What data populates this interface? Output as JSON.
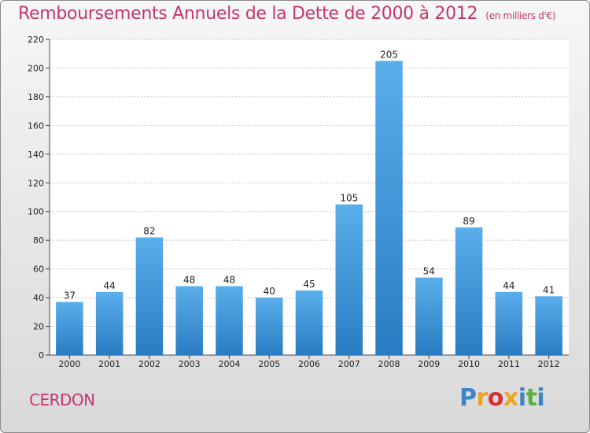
{
  "header": {
    "title": "Remboursements Annuels de la Dette de 2000 à 2012",
    "subtitle": "(en milliers d'€)"
  },
  "footer": {
    "commune": "CERDON",
    "logo_text": "Proxiti",
    "logo_colors": [
      "#3d86c6",
      "#f0a11f",
      "#d2343a",
      "#f0a11f",
      "#3d86c6",
      "#5bb146",
      "#3d86c6"
    ]
  },
  "chart_data": {
    "type": "bar",
    "categories": [
      "2000",
      "2001",
      "2002",
      "2003",
      "2004",
      "2005",
      "2006",
      "2007",
      "2008",
      "2009",
      "2010",
      "2011",
      "2012"
    ],
    "values": [
      37,
      44,
      82,
      48,
      48,
      40,
      45,
      105,
      205,
      54,
      89,
      44,
      41
    ],
    "title": "Remboursements Annuels de la Dette de 2000 à 2012",
    "subtitle": "(en milliers d'€)",
    "xlabel": "",
    "ylabel": "",
    "ylim": [
      0,
      220
    ],
    "yticks": [
      0,
      20,
      40,
      60,
      80,
      100,
      120,
      140,
      160,
      180,
      200,
      220
    ],
    "grid": true,
    "bar_color": "#3b8fd6"
  }
}
